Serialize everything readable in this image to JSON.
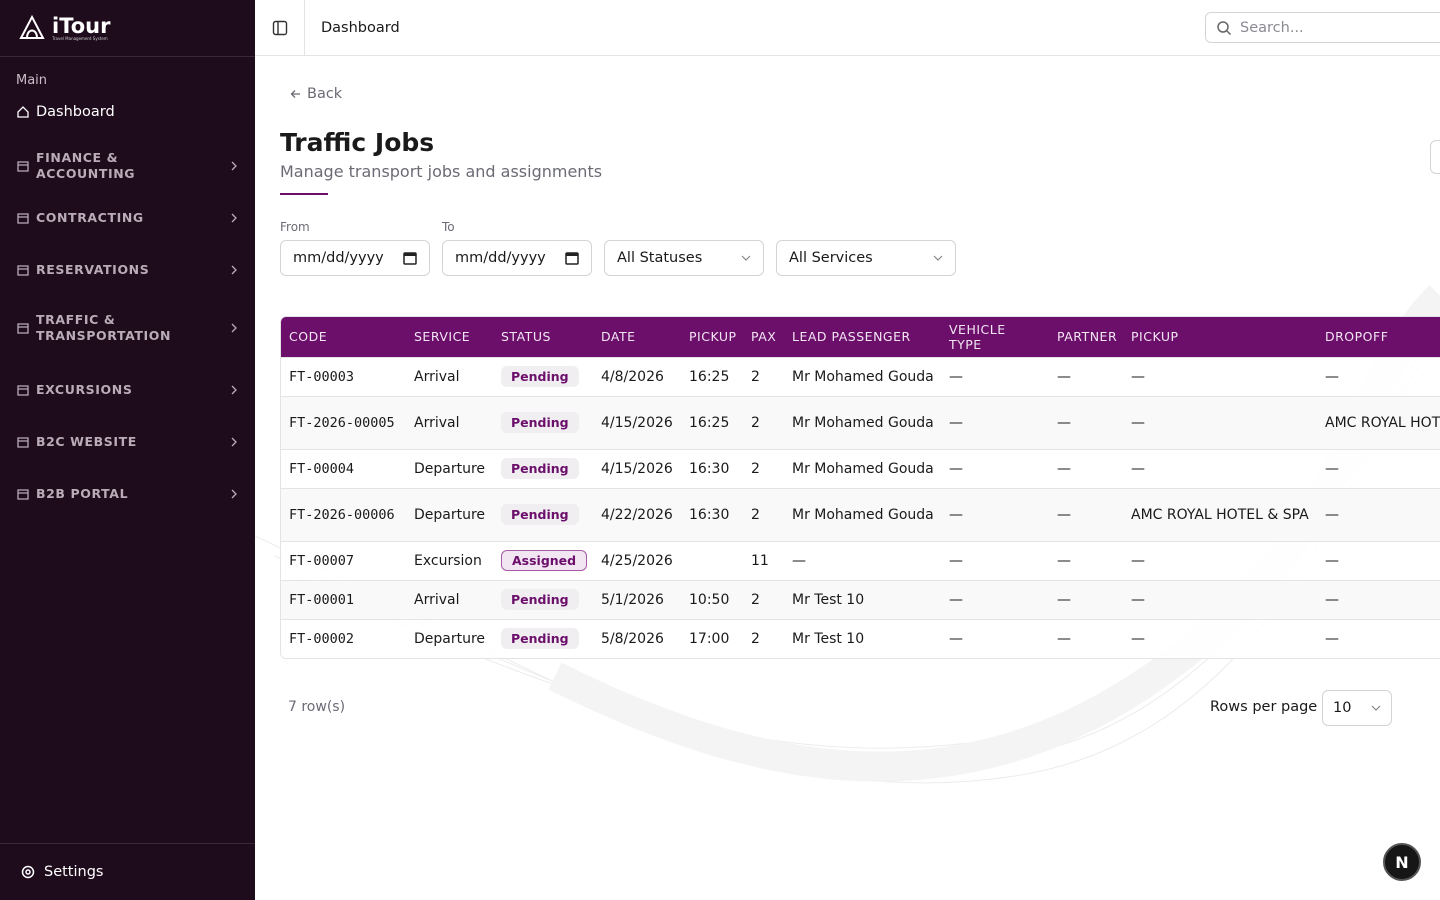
{
  "sidebar": {
    "logo": "iTour",
    "logo_sub": "Travel Management System",
    "section": "Main",
    "items": [
      "Dashboard",
      "FINANCE & ACCOUNTING",
      "CONTRACTING",
      "RESERVATIONS",
      "TRAFFIC & TRANSPORTATION",
      "EXCURSIONS",
      "B2C WEBSITE",
      "B2B PORTAL"
    ],
    "settings": "Settings"
  },
  "header": {
    "breadcrumb": "Dashboard",
    "search_placeholder": "Search..."
  },
  "page": {
    "back": "Back",
    "title": "Traffic Jobs",
    "subtitle": "Manage transport jobs and assignments"
  },
  "filters": {
    "from_label": "From",
    "to_label": "To",
    "from_placeholder": "mm/dd/yyyy",
    "to_placeholder": "mm/dd/yyyy",
    "status": "All Statuses",
    "service": "All Services"
  },
  "table": {
    "columns": [
      "CODE",
      "SERVICE",
      "STATUS",
      "DATE",
      "PICKUP",
      "PAX",
      "LEAD PASSENGER",
      "VEHICLE TYPE",
      "PARTNER",
      "PICKUP",
      "DROPOFF"
    ],
    "rows": [
      [
        "FT-00003",
        "Arrival",
        "Pending",
        "4/8/2026",
        "16:25",
        2,
        "Mr Mohamed Gouda",
        "—",
        "—",
        "—",
        "—"
      ],
      [
        "FT-2026-00005",
        "Arrival",
        "Pending",
        "4/15/2026",
        "16:25",
        2,
        "Mr Mohamed Gouda",
        "—",
        "—",
        "—",
        "AMC ROYAL HOTEL & SPA"
      ],
      [
        "FT-00004",
        "Departure",
        "Pending",
        "4/15/2026",
        "16:30",
        2,
        "Mr Mohamed Gouda",
        "—",
        "—",
        "—",
        "—"
      ],
      [
        "FT-2026-00006",
        "Departure",
        "Pending",
        "4/22/2026",
        "16:30",
        2,
        "Mr Mohamed Gouda",
        "—",
        "—",
        "AMC ROYAL HOTEL & SPA",
        "—"
      ],
      [
        "FT-00007",
        "Excursion",
        "Assigned",
        "4/25/2026",
        null,
        11,
        "—",
        "—",
        "—",
        "—",
        "—"
      ],
      [
        "FT-00001",
        "Arrival",
        "Pending",
        "5/1/2026",
        "10:50",
        2,
        "Mr Test 10",
        "—",
        "—",
        "—",
        "—"
      ],
      [
        "FT-00002",
        "Departure",
        "Pending",
        "5/8/2026",
        "17:00",
        2,
        "Mr Test 10",
        "—",
        "—",
        "—",
        "—"
      ]
    ]
  },
  "footer": {
    "row_count": "7 row(s)",
    "rows_per_page_label": "Rows per page",
    "rows_per_page": "10"
  },
  "avatar": "N"
}
